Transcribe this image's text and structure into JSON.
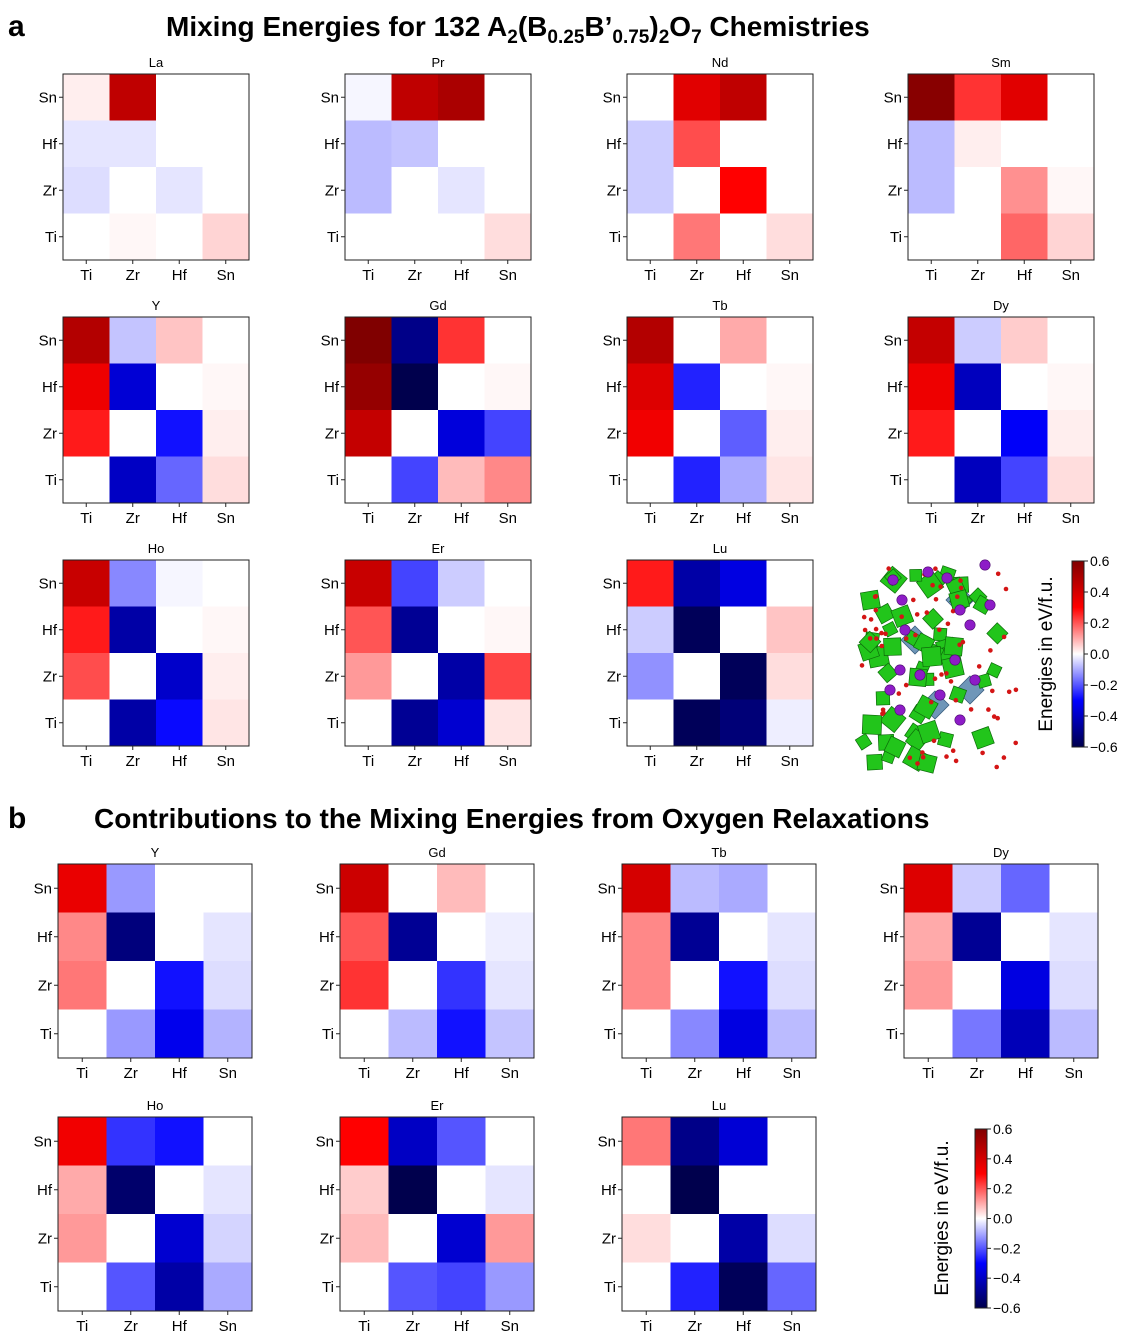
{
  "figure": {
    "panel_a": {
      "letter": "a",
      "title_parts": [
        "Mixing Energies for 132 A",
        "2",
        "(B",
        "0.25",
        "B’",
        "0.75",
        ")",
        "2",
        "O",
        "7",
        " Chemistries"
      ]
    },
    "panel_b": {
      "letter": "b",
      "title": "Contributions to the Mixing Energies from Oxygen Relaxations"
    },
    "structure_image": "pyrochlore-crystal-structure-icon",
    "colorbar": {
      "label": "Energies in eV/f.u.",
      "ticks": [
        "0.6",
        "0.4",
        "0.2",
        "0.0",
        "−0.2",
        "−0.4",
        "−0.6"
      ],
      "colormap": "seismic"
    }
  },
  "chart_data": [
    {
      "panel": "a",
      "type": "heatmap",
      "title": "Mixing Energies for 132 A2(B0.25B’0.75)2O7 Chemistries",
      "x_categories": [
        "Ti",
        "Zr",
        "Hf",
        "Sn"
      ],
      "y_categories_top_to_bottom": [
        "Sn",
        "Hf",
        "Zr",
        "Ti"
      ],
      "value_range": [
        -0.6,
        0.6
      ],
      "colorbar_label": "Energies in eV/f.u.",
      "maps": [
        {
          "name": "La",
          "values": [
            [
              0.02,
              0.45,
              0.0,
              0.0
            ],
            [
              -0.03,
              -0.03,
              0.0,
              0.0
            ],
            [
              -0.04,
              0.0,
              -0.03,
              0.0
            ],
            [
              0.0,
              0.01,
              0.0,
              0.05
            ]
          ]
        },
        {
          "name": "Pr",
          "values": [
            [
              -0.01,
              0.45,
              0.5,
              0.0
            ],
            [
              -0.08,
              -0.07,
              0.0,
              0.0
            ],
            [
              -0.08,
              0.0,
              -0.03,
              0.0
            ],
            [
              0.0,
              0.0,
              0.0,
              0.04
            ]
          ]
        },
        {
          "name": "Nd",
          "values": [
            [
              0.0,
              0.37,
              0.45,
              0.0
            ],
            [
              -0.06,
              0.21,
              0.0,
              0.0
            ],
            [
              -0.06,
              0.0,
              0.3,
              0.0
            ],
            [
              0.0,
              0.16,
              0.0,
              0.04
            ]
          ]
        },
        {
          "name": "Sm",
          "values": [
            [
              0.58,
              0.24,
              0.37,
              0.0
            ],
            [
              -0.08,
              0.02,
              0.0,
              0.0
            ],
            [
              -0.08,
              0.0,
              0.13,
              0.01
            ],
            [
              0.0,
              0.0,
              0.18,
              0.05
            ]
          ]
        },
        {
          "name": "Y",
          "values": [
            [
              0.48,
              -0.07,
              0.07,
              0.0
            ],
            [
              0.34,
              -0.37,
              0.0,
              0.01
            ],
            [
              0.27,
              0.0,
              -0.28,
              0.02
            ],
            [
              0.0,
              -0.4,
              -0.18,
              0.04
            ]
          ]
        },
        {
          "name": "Gd",
          "values": [
            [
              0.6,
              -0.5,
              0.24,
              0.0
            ],
            [
              0.55,
              -0.62,
              0.0,
              0.01
            ],
            [
              0.44,
              0.0,
              -0.36,
              -0.22
            ],
            [
              0.0,
              -0.22,
              0.08,
              0.14
            ]
          ]
        },
        {
          "name": "Tb",
          "values": [
            [
              0.48,
              0.0,
              0.1,
              0.0
            ],
            [
              0.38,
              -0.26,
              0.0,
              0.01
            ],
            [
              0.33,
              0.0,
              -0.19,
              0.02
            ],
            [
              0.0,
              -0.26,
              -0.1,
              0.03
            ]
          ]
        },
        {
          "name": "Dy",
          "values": [
            [
              0.44,
              -0.06,
              0.06,
              0.0
            ],
            [
              0.34,
              -0.41,
              0.0,
              0.01
            ],
            [
              0.27,
              0.0,
              -0.31,
              0.02
            ],
            [
              0.0,
              -0.41,
              -0.22,
              0.04
            ]
          ]
        },
        {
          "name": "Ho",
          "values": [
            [
              0.43,
              -0.14,
              -0.01,
              0.0
            ],
            [
              0.27,
              -0.45,
              0.0,
              0.01
            ],
            [
              0.21,
              0.0,
              -0.39,
              0.02
            ],
            [
              0.0,
              -0.45,
              -0.29,
              0.03
            ]
          ]
        },
        {
          "name": "Er",
          "values": [
            [
              0.43,
              -0.22,
              -0.06,
              0.0
            ],
            [
              0.2,
              -0.48,
              0.0,
              0.01
            ],
            [
              0.12,
              0.0,
              -0.45,
              0.22
            ],
            [
              0.0,
              -0.48,
              -0.38,
              0.03
            ]
          ]
        },
        {
          "name": "Lu",
          "values": [
            [
              0.27,
              -0.45,
              -0.35,
              0.0
            ],
            [
              -0.06,
              -0.58,
              0.0,
              0.07
            ],
            [
              -0.13,
              0.0,
              -0.58,
              0.04
            ],
            [
              0.0,
              -0.58,
              -0.53,
              -0.02
            ]
          ]
        }
      ]
    },
    {
      "panel": "b",
      "type": "heatmap",
      "title": "Contributions to the Mixing Energies from Oxygen Relaxations",
      "x_categories": [
        "Ti",
        "Zr",
        "Hf",
        "Sn"
      ],
      "y_categories_top_to_bottom": [
        "Sn",
        "Hf",
        "Zr",
        "Ti"
      ],
      "value_range": [
        -0.6,
        0.6
      ],
      "colorbar_label": "Energies in eV/f.u.",
      "maps": [
        {
          "name": "Y",
          "values": [
            [
              0.35,
              -0.12,
              0.0,
              0.0
            ],
            [
              0.14,
              -0.52,
              0.0,
              -0.03
            ],
            [
              0.16,
              0.0,
              -0.28,
              -0.04
            ],
            [
              0.0,
              -0.12,
              -0.33,
              -0.09
            ]
          ]
        },
        {
          "name": "Gd",
          "values": [
            [
              0.42,
              0.0,
              0.08,
              0.0
            ],
            [
              0.2,
              -0.48,
              0.0,
              -0.02
            ],
            [
              0.24,
              0.0,
              -0.24,
              -0.03
            ],
            [
              0.0,
              -0.08,
              -0.28,
              -0.07
            ]
          ]
        },
        {
          "name": "Tb",
          "values": [
            [
              0.4,
              -0.08,
              -0.1,
              0.0
            ],
            [
              0.14,
              -0.48,
              0.0,
              -0.03
            ],
            [
              0.14,
              0.0,
              -0.28,
              -0.04
            ],
            [
              0.0,
              -0.14,
              -0.35,
              -0.08
            ]
          ]
        },
        {
          "name": "Dy",
          "values": [
            [
              0.38,
              -0.06,
              -0.18,
              0.0
            ],
            [
              0.1,
              -0.48,
              0.0,
              -0.03
            ],
            [
              0.12,
              0.0,
              -0.35,
              -0.04
            ],
            [
              0.0,
              -0.16,
              -0.42,
              -0.08
            ]
          ]
        },
        {
          "name": "Ho",
          "values": [
            [
              0.33,
              -0.24,
              -0.28,
              0.0
            ],
            [
              0.1,
              -0.55,
              0.0,
              -0.03
            ],
            [
              0.12,
              0.0,
              -0.38,
              -0.05
            ],
            [
              0.0,
              -0.2,
              -0.45,
              -0.1
            ]
          ]
        },
        {
          "name": "Er",
          "values": [
            [
              0.3,
              -0.4,
              -0.2,
              0.0
            ],
            [
              0.06,
              -0.6,
              0.0,
              -0.03
            ],
            [
              0.08,
              0.0,
              -0.38,
              0.12
            ],
            [
              0.0,
              -0.2,
              -0.22,
              -0.12
            ]
          ]
        },
        {
          "name": "Lu",
          "values": [
            [
              0.16,
              -0.5,
              -0.37,
              0.0
            ],
            [
              0.0,
              -0.62,
              0.0,
              0.0
            ],
            [
              0.04,
              0.0,
              -0.45,
              -0.04
            ],
            [
              0.0,
              -0.26,
              -0.58,
              -0.18
            ]
          ]
        }
      ]
    }
  ]
}
